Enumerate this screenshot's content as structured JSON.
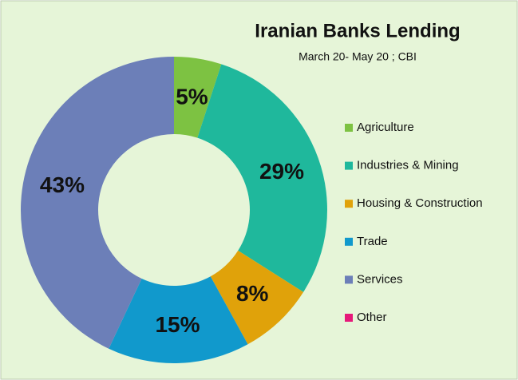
{
  "chart_data": {
    "type": "donut",
    "title": "Iranian Banks Lending",
    "subtitle": "March 20- May 20 ; CBI",
    "categories": [
      "Agriculture",
      "Industries & Mining",
      "Housing & Construction",
      "Trade",
      "Services",
      "Other"
    ],
    "values": [
      5,
      29,
      8,
      15,
      43,
      0
    ],
    "value_labels": [
      "5%",
      "29%",
      "8%",
      "15%",
      "43%",
      null
    ],
    "colors": [
      "#7dc242",
      "#1fb89c",
      "#e0a20a",
      "#1199cc",
      "#6c7fb8",
      "#e6197a"
    ],
    "legend": "right"
  }
}
